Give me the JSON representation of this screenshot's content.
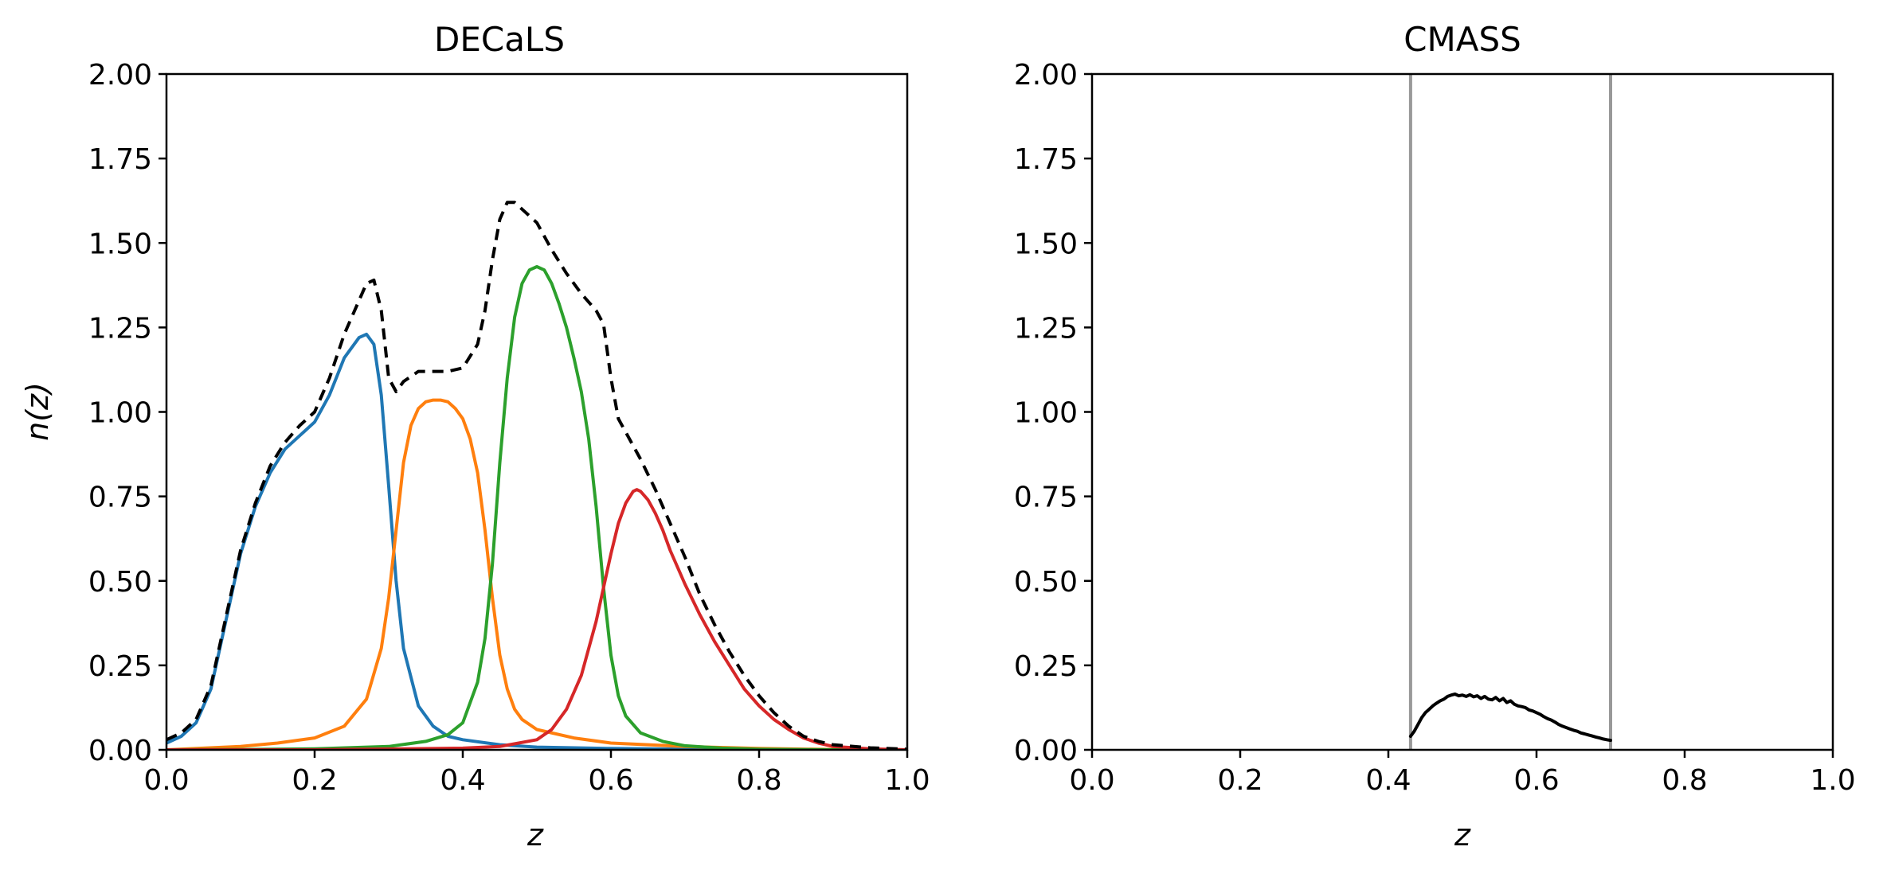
{
  "chart_data": [
    {
      "type": "line",
      "title": "DECaLS",
      "xlabel": "z",
      "ylabel": "n(z)",
      "xlim": [
        0.0,
        1.0
      ],
      "ylim": [
        0.0,
        2.0
      ],
      "xticks": [
        "0.0",
        "0.2",
        "0.4",
        "0.6",
        "0.8",
        "1.0"
      ],
      "yticks": [
        "0.00",
        "0.25",
        "0.50",
        "0.75",
        "1.00",
        "1.25",
        "1.50",
        "1.75",
        "2.00"
      ],
      "grid": false,
      "series": [
        {
          "color": "#1f77b4",
          "style": "solid",
          "x": [
            0.0,
            0.02,
            0.04,
            0.06,
            0.08,
            0.1,
            0.12,
            0.14,
            0.16,
            0.18,
            0.2,
            0.22,
            0.24,
            0.26,
            0.27,
            0.28,
            0.29,
            0.3,
            0.31,
            0.32,
            0.34,
            0.36,
            0.38,
            0.4,
            0.45,
            0.5,
            0.6,
            0.7,
            0.8,
            0.9,
            1.0
          ],
          "y": [
            0.02,
            0.04,
            0.08,
            0.18,
            0.38,
            0.58,
            0.72,
            0.82,
            0.89,
            0.93,
            0.97,
            1.05,
            1.16,
            1.22,
            1.23,
            1.2,
            1.05,
            0.78,
            0.5,
            0.3,
            0.13,
            0.07,
            0.04,
            0.03,
            0.015,
            0.008,
            0.004,
            0.002,
            0.001,
            0.0,
            0.0
          ]
        },
        {
          "color": "#ff7f0e",
          "style": "solid",
          "x": [
            0.0,
            0.05,
            0.1,
            0.15,
            0.2,
            0.24,
            0.27,
            0.29,
            0.3,
            0.31,
            0.32,
            0.33,
            0.34,
            0.35,
            0.36,
            0.37,
            0.38,
            0.39,
            0.4,
            0.41,
            0.42,
            0.43,
            0.44,
            0.45,
            0.46,
            0.47,
            0.48,
            0.5,
            0.55,
            0.6,
            0.7,
            0.8,
            0.9,
            1.0
          ],
          "y": [
            0.0,
            0.005,
            0.01,
            0.02,
            0.035,
            0.07,
            0.15,
            0.3,
            0.45,
            0.65,
            0.85,
            0.96,
            1.01,
            1.03,
            1.035,
            1.035,
            1.03,
            1.01,
            0.98,
            0.92,
            0.82,
            0.65,
            0.45,
            0.28,
            0.18,
            0.12,
            0.09,
            0.06,
            0.035,
            0.02,
            0.01,
            0.004,
            0.001,
            0.0
          ]
        },
        {
          "color": "#2ca02c",
          "style": "solid",
          "x": [
            0.0,
            0.1,
            0.2,
            0.3,
            0.35,
            0.38,
            0.4,
            0.42,
            0.43,
            0.44,
            0.45,
            0.46,
            0.47,
            0.48,
            0.49,
            0.5,
            0.51,
            0.52,
            0.53,
            0.54,
            0.55,
            0.56,
            0.57,
            0.58,
            0.59,
            0.6,
            0.61,
            0.62,
            0.64,
            0.67,
            0.7,
            0.75,
            0.8,
            0.9,
            1.0
          ],
          "y": [
            0.0,
            0.001,
            0.003,
            0.01,
            0.025,
            0.045,
            0.08,
            0.2,
            0.33,
            0.55,
            0.85,
            1.1,
            1.28,
            1.38,
            1.42,
            1.43,
            1.42,
            1.38,
            1.32,
            1.25,
            1.16,
            1.06,
            0.92,
            0.72,
            0.48,
            0.28,
            0.16,
            0.1,
            0.05,
            0.025,
            0.012,
            0.005,
            0.002,
            0.0,
            0.0
          ]
        },
        {
          "color": "#d62728",
          "style": "solid",
          "x": [
            0.0,
            0.2,
            0.4,
            0.45,
            0.5,
            0.52,
            0.54,
            0.56,
            0.58,
            0.59,
            0.6,
            0.61,
            0.62,
            0.63,
            0.635,
            0.64,
            0.65,
            0.66,
            0.67,
            0.68,
            0.7,
            0.72,
            0.74,
            0.76,
            0.78,
            0.8,
            0.82,
            0.84,
            0.86,
            0.88,
            0.9,
            0.95,
            1.0
          ],
          "y": [
            0.0,
            0.0,
            0.005,
            0.01,
            0.03,
            0.06,
            0.12,
            0.22,
            0.38,
            0.48,
            0.58,
            0.67,
            0.73,
            0.765,
            0.77,
            0.765,
            0.74,
            0.7,
            0.65,
            0.59,
            0.49,
            0.4,
            0.32,
            0.25,
            0.18,
            0.13,
            0.09,
            0.06,
            0.035,
            0.02,
            0.01,
            0.003,
            0.0
          ]
        },
        {
          "color": "#000000",
          "style": "dashed",
          "x": [
            0.0,
            0.02,
            0.04,
            0.06,
            0.08,
            0.1,
            0.12,
            0.14,
            0.16,
            0.18,
            0.2,
            0.22,
            0.24,
            0.26,
            0.27,
            0.28,
            0.29,
            0.3,
            0.31,
            0.32,
            0.34,
            0.36,
            0.38,
            0.4,
            0.42,
            0.43,
            0.44,
            0.45,
            0.46,
            0.47,
            0.48,
            0.5,
            0.52,
            0.54,
            0.56,
            0.58,
            0.59,
            0.6,
            0.61,
            0.62,
            0.64,
            0.66,
            0.68,
            0.7,
            0.72,
            0.74,
            0.76,
            0.78,
            0.8,
            0.82,
            0.84,
            0.86,
            0.88,
            0.9,
            0.95,
            1.0
          ],
          "y": [
            0.03,
            0.05,
            0.09,
            0.19,
            0.39,
            0.59,
            0.73,
            0.84,
            0.91,
            0.96,
            1.0,
            1.1,
            1.23,
            1.33,
            1.38,
            1.39,
            1.3,
            1.1,
            1.06,
            1.09,
            1.12,
            1.12,
            1.12,
            1.13,
            1.2,
            1.3,
            1.45,
            1.57,
            1.62,
            1.62,
            1.6,
            1.56,
            1.48,
            1.41,
            1.35,
            1.3,
            1.26,
            1.1,
            0.98,
            0.94,
            0.86,
            0.77,
            0.67,
            0.57,
            0.46,
            0.37,
            0.29,
            0.22,
            0.16,
            0.11,
            0.07,
            0.04,
            0.025,
            0.015,
            0.006,
            0.002
          ]
        }
      ]
    },
    {
      "type": "line",
      "title": "CMASS",
      "xlabel": "z",
      "ylabel": "",
      "xlim": [
        0.0,
        1.0
      ],
      "ylim": [
        0.0,
        2.0
      ],
      "xticks": [
        "0.0",
        "0.2",
        "0.4",
        "0.6",
        "0.8",
        "1.0"
      ],
      "yticks": [
        "0.00",
        "0.25",
        "0.50",
        "0.75",
        "1.00",
        "1.25",
        "1.50",
        "1.75",
        "2.00"
      ],
      "grid": false,
      "vlines": [
        {
          "x": 0.43,
          "color": "#999999"
        },
        {
          "x": 0.7,
          "color": "#999999"
        }
      ],
      "series": [
        {
          "color": "#000000",
          "style": "solid",
          "x": [
            0.43,
            0.435,
            0.44,
            0.445,
            0.45,
            0.455,
            0.46,
            0.465,
            0.47,
            0.475,
            0.48,
            0.485,
            0.49,
            0.495,
            0.5,
            0.505,
            0.51,
            0.515,
            0.52,
            0.525,
            0.53,
            0.535,
            0.54,
            0.545,
            0.55,
            0.555,
            0.56,
            0.565,
            0.57,
            0.575,
            0.58,
            0.585,
            0.59,
            0.595,
            0.6,
            0.605,
            0.61,
            0.615,
            0.62,
            0.625,
            0.63,
            0.635,
            0.64,
            0.645,
            0.65,
            0.655,
            0.66,
            0.665,
            0.67,
            0.675,
            0.68,
            0.685,
            0.69,
            0.695,
            0.7
          ],
          "y": [
            0.04,
            0.055,
            0.075,
            0.095,
            0.11,
            0.12,
            0.13,
            0.138,
            0.145,
            0.15,
            0.158,
            0.162,
            0.165,
            0.16,
            0.162,
            0.158,
            0.163,
            0.157,
            0.16,
            0.152,
            0.158,
            0.15,
            0.148,
            0.155,
            0.145,
            0.152,
            0.14,
            0.145,
            0.135,
            0.13,
            0.128,
            0.125,
            0.118,
            0.115,
            0.11,
            0.105,
            0.098,
            0.092,
            0.088,
            0.082,
            0.075,
            0.07,
            0.066,
            0.062,
            0.058,
            0.055,
            0.05,
            0.047,
            0.044,
            0.041,
            0.038,
            0.035,
            0.032,
            0.03,
            0.028
          ]
        }
      ]
    }
  ]
}
